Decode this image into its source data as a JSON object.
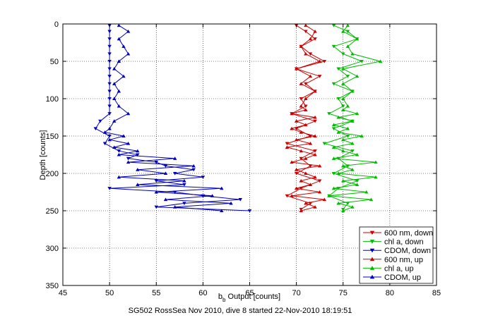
{
  "chart_data": {
    "type": "line",
    "xlabel": "b_b Output [counts]",
    "xlabel_main": "b",
    "xlabel_sub": "b",
    "xlabel_rest": " Output [counts]",
    "ylabel": "Depth [counts]",
    "caption": "SG502 RossSea Nov 2010, dive 8 started 22-Nov-2010 18:19:51",
    "xlim": [
      45,
      85
    ],
    "ylim": [
      0,
      350
    ],
    "y_reversed": true,
    "grid": true,
    "xticks": [
      45,
      50,
      55,
      60,
      65,
      70,
      75,
      80,
      85
    ],
    "yticks": [
      0,
      50,
      100,
      150,
      200,
      250,
      300,
      350
    ],
    "legend_position": "bottom-right",
    "series": [
      {
        "name": "600 nm, down",
        "color": "#cc0000",
        "marker": "down",
        "depth": [
          2,
          10,
          20,
          30,
          40,
          50,
          60,
          70,
          80,
          90,
          100,
          110,
          120,
          130,
          140,
          150,
          160,
          170,
          180,
          190,
          200,
          210,
          220,
          230,
          240,
          248
        ],
        "values": [
          70.0,
          71.0,
          72.0,
          70.5,
          71.5,
          73.0,
          70.0,
          72.5,
          71.0,
          72.0,
          70.5,
          71.0,
          69.5,
          72.0,
          70.0,
          71.5,
          69.0,
          72.0,
          70.5,
          71.5,
          70.0,
          72.5,
          70.5,
          69.0,
          71.5,
          70.5
        ]
      },
      {
        "name": "chl a, down",
        "color": "#00bb00",
        "marker": "down",
        "depth": [
          2,
          10,
          20,
          30,
          40,
          50,
          60,
          70,
          80,
          90,
          100,
          110,
          120,
          130,
          140,
          150,
          160,
          170,
          180,
          190,
          200,
          210,
          220,
          230,
          240,
          248
        ],
        "values": [
          74.0,
          75.5,
          76.5,
          74.0,
          75.0,
          77.0,
          74.5,
          75.5,
          74.0,
          76.0,
          74.5,
          75.0,
          73.5,
          76.0,
          74.0,
          75.5,
          73.0,
          76.0,
          74.5,
          75.5,
          74.0,
          76.5,
          74.5,
          73.5,
          75.5,
          75.0
        ]
      },
      {
        "name": "CDOM, down",
        "color": "#0000bb",
        "marker": "down",
        "depth": [
          2,
          10,
          20,
          30,
          40,
          50,
          60,
          70,
          80,
          90,
          100,
          110,
          120,
          130,
          140,
          150,
          160,
          170,
          175,
          180,
          185,
          190,
          195,
          200,
          205,
          210,
          215,
          220,
          225,
          230,
          235,
          240,
          245,
          250
        ],
        "values": [
          50.0,
          50.0,
          50.0,
          50.0,
          50.0,
          50.0,
          50.0,
          50.0,
          50.0,
          50.0,
          50.0,
          50.0,
          50.0,
          49.0,
          48.5,
          50.0,
          49.5,
          51.0,
          53.0,
          52.0,
          55.0,
          56.0,
          59.0,
          57.0,
          60.0,
          55.0,
          58.0,
          50.0,
          57.0,
          60.0,
          64.0,
          58.0,
          55.0,
          65.0
        ]
      },
      {
        "name": "600 nm, up",
        "color": "#cc0000",
        "marker": "up",
        "depth": [
          250,
          245,
          240,
          235,
          230,
          225,
          220,
          215,
          210,
          205,
          200,
          195,
          190,
          185,
          180,
          175,
          170,
          165,
          160,
          155,
          150,
          145,
          140,
          135,
          130,
          125,
          120,
          115,
          110,
          100,
          90,
          80,
          70,
          60,
          50,
          40,
          30,
          20,
          10,
          2
        ],
        "values": [
          70.5,
          72.0,
          71.0,
          73.0,
          69.5,
          72.5,
          70.0,
          71.5,
          70.5,
          72.0,
          71.0,
          70.0,
          72.5,
          69.5,
          71.0,
          72.0,
          70.5,
          69.0,
          71.5,
          70.0,
          72.0,
          70.5,
          69.5,
          71.0,
          70.0,
          72.0,
          69.5,
          71.0,
          70.5,
          71.0,
          72.0,
          70.5,
          71.5,
          70.0,
          72.5,
          71.0,
          70.5,
          71.5,
          72.0,
          71.0
        ]
      },
      {
        "name": "chl a, up",
        "color": "#00bb00",
        "marker": "up",
        "depth": [
          250,
          245,
          240,
          235,
          230,
          225,
          220,
          215,
          210,
          205,
          200,
          195,
          190,
          185,
          180,
          175,
          170,
          165,
          160,
          155,
          150,
          145,
          140,
          135,
          130,
          125,
          120,
          115,
          110,
          100,
          90,
          80,
          70,
          60,
          50,
          40,
          30,
          20,
          10,
          2
        ],
        "values": [
          75.0,
          76.0,
          74.5,
          78.0,
          73.5,
          77.5,
          74.0,
          76.5,
          75.0,
          78.5,
          74.5,
          76.0,
          75.0,
          78.5,
          74.0,
          76.5,
          75.0,
          74.0,
          76.0,
          75.0,
          77.0,
          74.5,
          75.5,
          74.0,
          76.0,
          74.5,
          76.5,
          75.0,
          75.5,
          75.0,
          76.0,
          75.0,
          76.5,
          75.0,
          79.0,
          76.0,
          75.5,
          76.5,
          75.0,
          75.5
        ]
      },
      {
        "name": "CDOM, up",
        "color": "#0000bb",
        "marker": "up",
        "depth": [
          250,
          245,
          240,
          235,
          230,
          225,
          220,
          215,
          210,
          205,
          200,
          195,
          190,
          185,
          180,
          175,
          170,
          165,
          160,
          155,
          150,
          145,
          140,
          130,
          120,
          110,
          100,
          90,
          80,
          70,
          60,
          50,
          40,
          30,
          20,
          10,
          2
        ],
        "values": [
          62.0,
          57.0,
          63.0,
          56.0,
          61.0,
          55.0,
          62.0,
          53.0,
          58.0,
          51.0,
          56.0,
          53.0,
          59.0,
          52.0,
          57.0,
          51.0,
          53.0,
          50.5,
          52.0,
          50.0,
          51.5,
          49.5,
          50.0,
          50.5,
          52.0,
          51.0,
          50.5,
          51.0,
          50.5,
          51.5,
          50.5,
          51.0,
          52.0,
          51.5,
          51.0,
          52.0,
          51.0
        ]
      }
    ]
  }
}
